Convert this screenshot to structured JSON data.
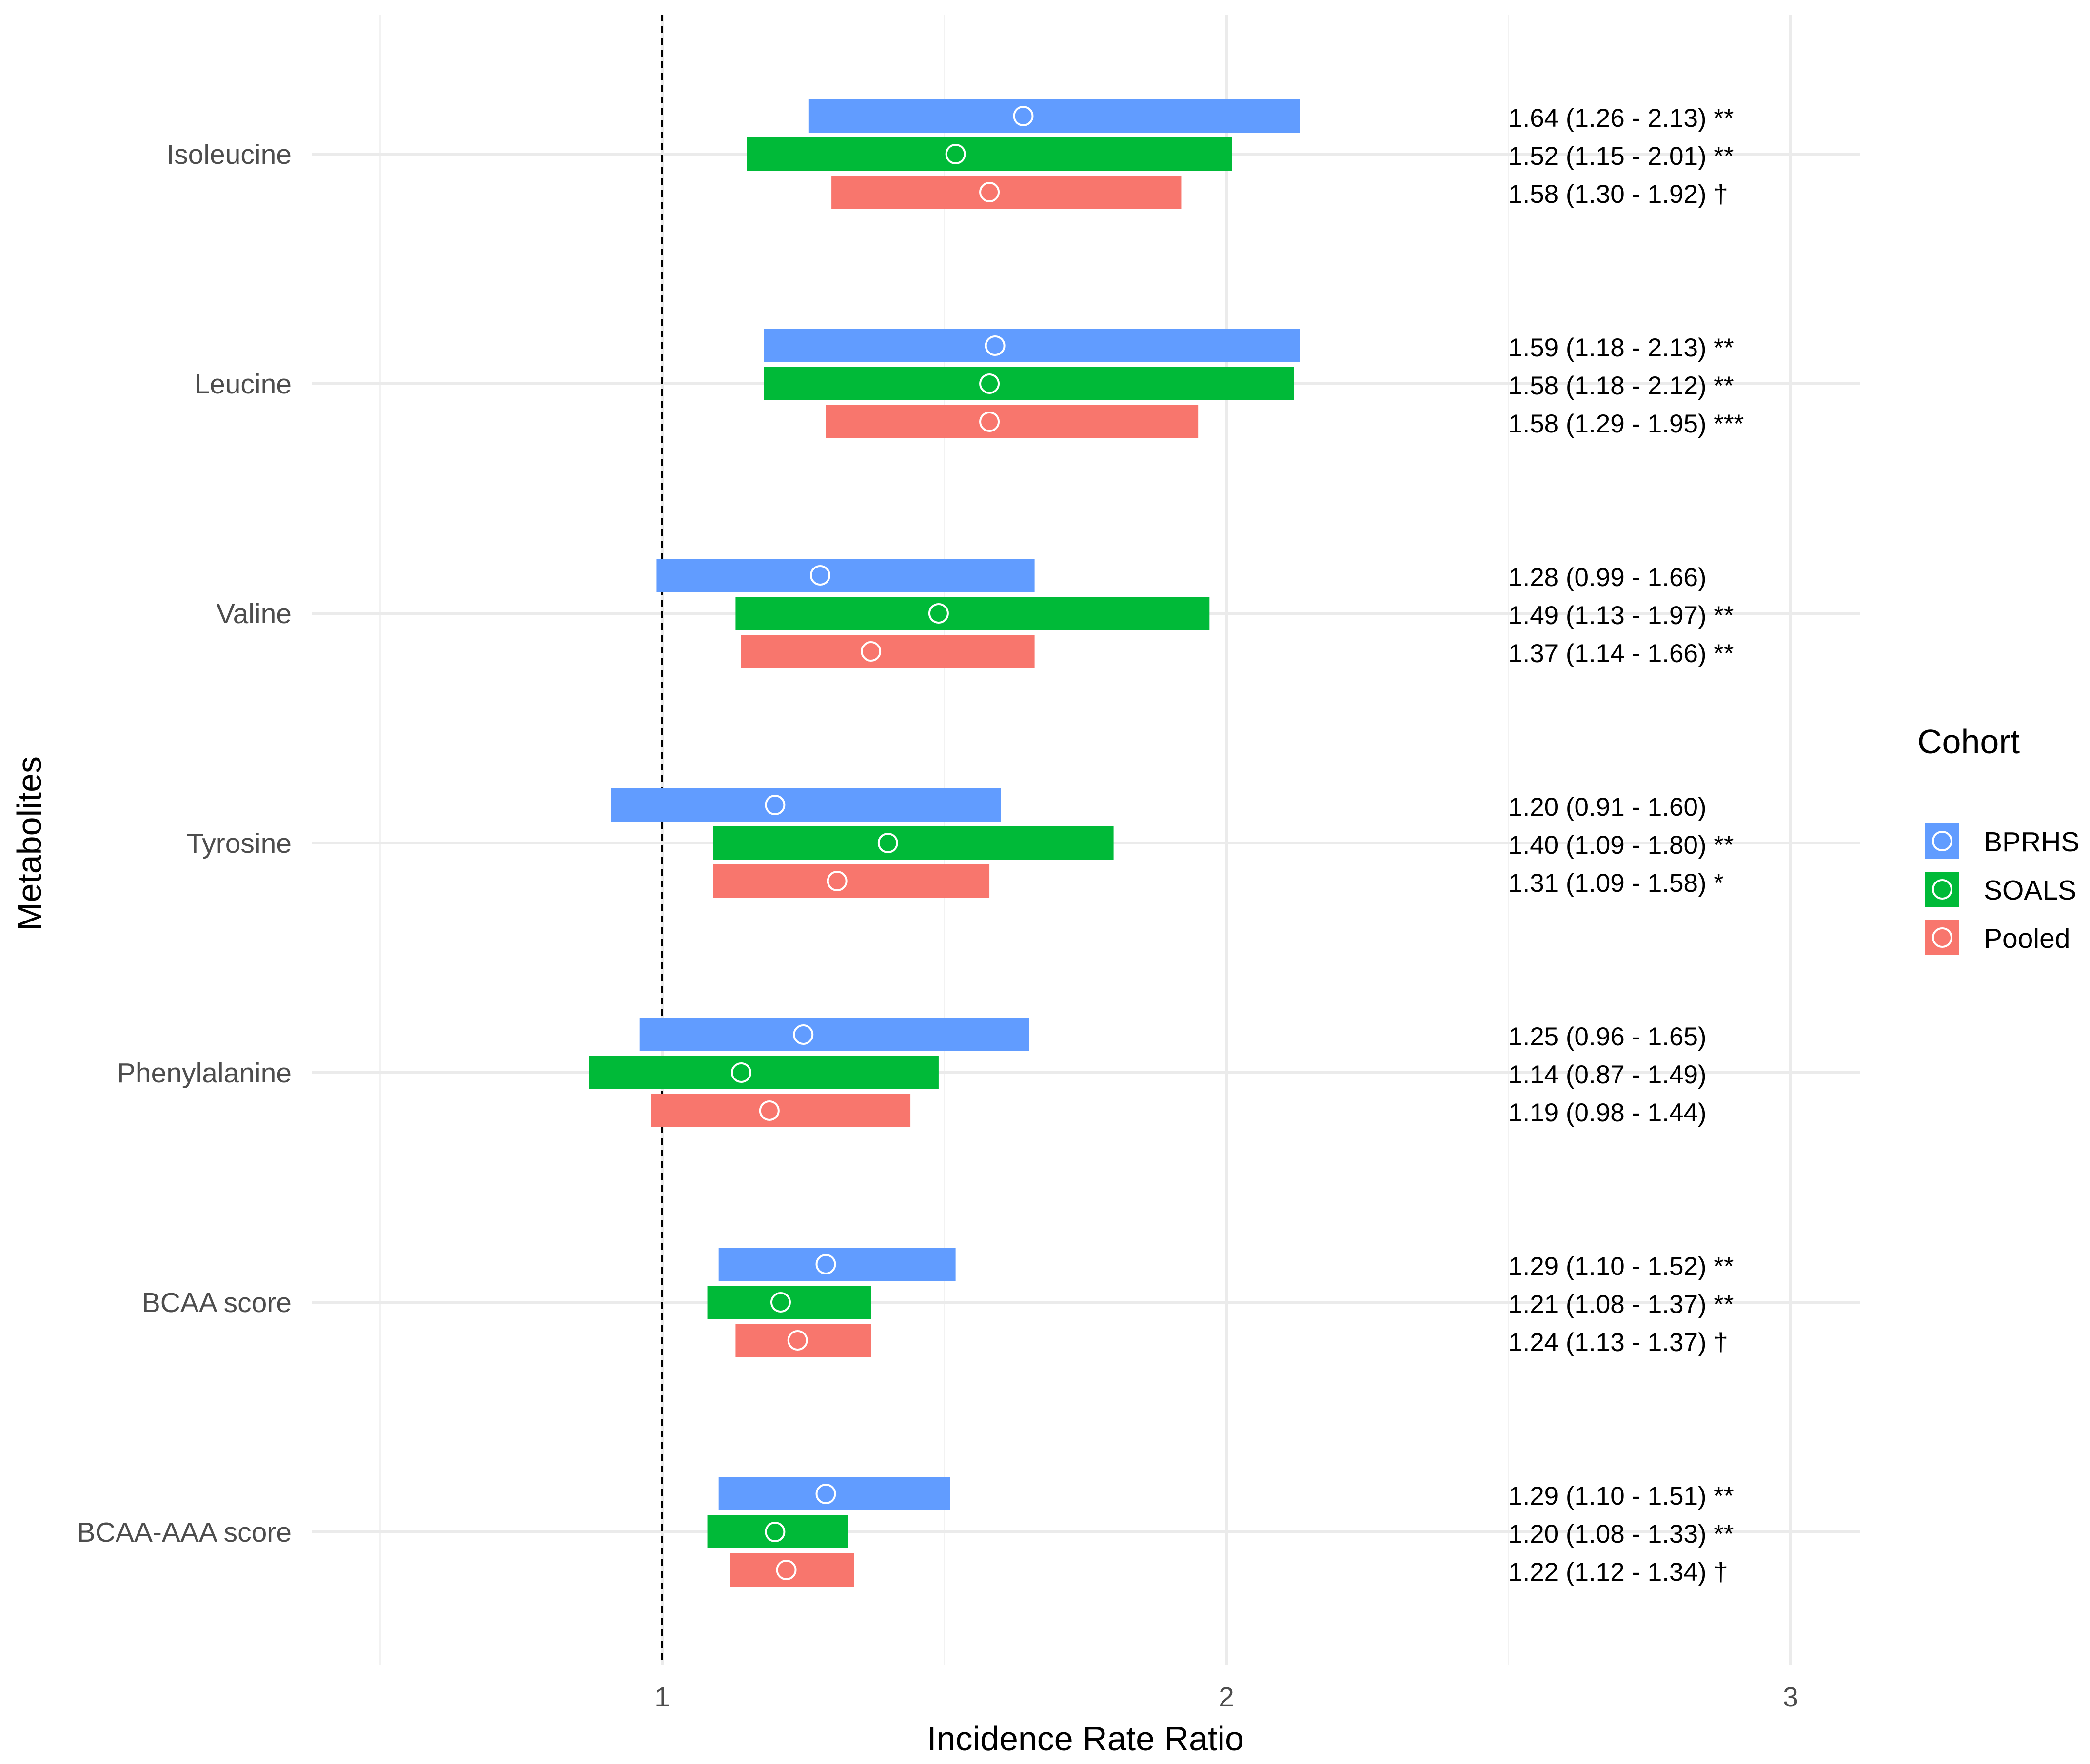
{
  "chart_data": {
    "type": "forest",
    "xlabel": "Incidence Rate Ratio",
    "ylabel": "Metabolites",
    "xlim": [
      0.5,
      3.12
    ],
    "x_ticks": [
      1,
      2,
      3
    ],
    "x_minor_grid": [
      0.5,
      1.5,
      2.5
    ],
    "reference_line": 1,
    "reference_line_style": "dashed",
    "grid": true,
    "legend": {
      "title": "Cohort",
      "position": "right",
      "entries": [
        {
          "name": "BPRHS",
          "color": "#619CFF"
        },
        {
          "name": "SOALS",
          "color": "#00BA38"
        },
        {
          "name": "Pooled",
          "color": "#F8766D"
        }
      ]
    },
    "categories": [
      "Isoleucine",
      "Leucine",
      "Valine",
      "Tyrosine",
      "Phenylalanine",
      "BCAA score",
      "BCAA-AAA score"
    ],
    "series": [
      {
        "name": "BPRHS",
        "color": "#619CFF",
        "estimate": [
          1.64,
          1.59,
          1.28,
          1.2,
          1.25,
          1.29,
          1.29
        ],
        "lower": [
          1.26,
          1.18,
          0.99,
          0.91,
          0.96,
          1.1,
          1.1
        ],
        "upper": [
          2.13,
          2.13,
          1.66,
          1.6,
          1.65,
          1.52,
          1.51
        ],
        "labels": [
          "1.64 (1.26 - 2.13) **",
          "1.59 (1.18 - 2.13) **",
          "1.28 (0.99 - 1.66)",
          "1.20 (0.91 - 1.60)",
          "1.25 (0.96 - 1.65)",
          "1.29 (1.10 - 1.52) **",
          "1.29 (1.10 - 1.51) **"
        ]
      },
      {
        "name": "SOALS",
        "color": "#00BA38",
        "estimate": [
          1.52,
          1.58,
          1.49,
          1.4,
          1.14,
          1.21,
          1.2
        ],
        "lower": [
          1.15,
          1.18,
          1.13,
          1.09,
          0.87,
          1.08,
          1.08
        ],
        "upper": [
          2.01,
          2.12,
          1.97,
          1.8,
          1.49,
          1.37,
          1.33
        ],
        "labels": [
          "1.52 (1.15 - 2.01) **",
          "1.58 (1.18 - 2.12) **",
          "1.49 (1.13 - 1.97) **",
          "1.40 (1.09 - 1.80) **",
          "1.14 (0.87 - 1.49)",
          "1.21 (1.08 - 1.37) **",
          "1.20 (1.08 - 1.33) **"
        ]
      },
      {
        "name": "Pooled",
        "color": "#F8766D",
        "estimate": [
          1.58,
          1.58,
          1.37,
          1.31,
          1.19,
          1.24,
          1.22
        ],
        "lower": [
          1.3,
          1.29,
          1.14,
          1.09,
          0.98,
          1.13,
          1.12
        ],
        "upper": [
          1.92,
          1.95,
          1.66,
          1.58,
          1.44,
          1.37,
          1.34
        ],
        "labels": [
          "1.58 (1.30 - 1.92) †",
          "1.58 (1.29 - 1.95) ***",
          "1.37 (1.14 - 1.66) **",
          "1.31 (1.09 - 1.58) *",
          "1.19 (0.98 - 1.44)",
          "1.24 (1.13 - 1.37) †",
          "1.22 (1.12 - 1.34) †"
        ]
      }
    ]
  }
}
